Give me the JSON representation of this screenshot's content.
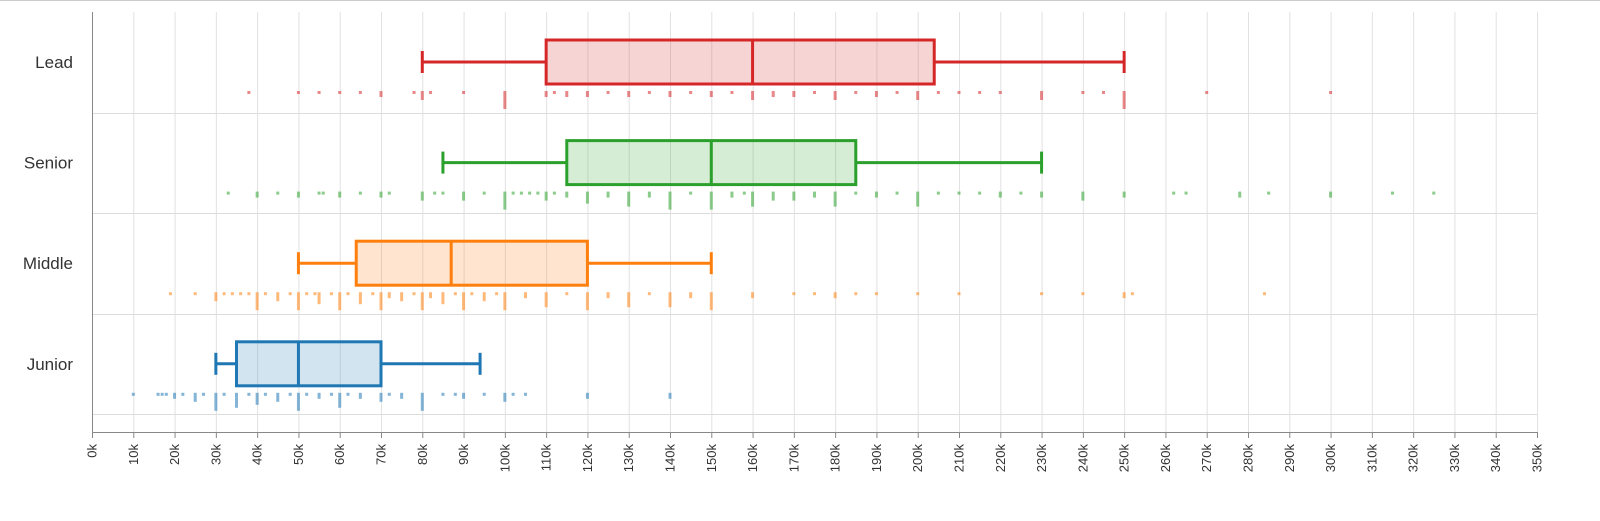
{
  "chart_data": {
    "type": "boxplot",
    "title": "",
    "xlabel": "",
    "ylabel": "",
    "xlim": [
      0,
      350
    ],
    "x_unit_suffix": "k",
    "x_ticks": [
      "0k",
      "10k",
      "20k",
      "30k",
      "40k",
      "50k",
      "60k",
      "70k",
      "80k",
      "90k",
      "100k",
      "110k",
      "120k",
      "130k",
      "140k",
      "150k",
      "160k",
      "170k",
      "180k",
      "190k",
      "200k",
      "210k",
      "220k",
      "230k",
      "240k",
      "250k",
      "260k",
      "270k",
      "280k",
      "290k",
      "300k",
      "310k",
      "320k",
      "330k",
      "340k",
      "350k"
    ],
    "grid": true,
    "series": [
      {
        "name": "Lead",
        "color": "#d62728",
        "min": 80,
        "q1": 110,
        "median": 160,
        "q3": 204,
        "max": 250,
        "rug": [
          [
            38,
            1
          ],
          [
            50,
            1
          ],
          [
            55,
            1
          ],
          [
            60,
            1
          ],
          [
            65,
            1
          ],
          [
            70,
            2
          ],
          [
            78,
            1
          ],
          [
            80,
            3
          ],
          [
            82,
            1
          ],
          [
            90,
            1
          ],
          [
            100,
            6
          ],
          [
            110,
            2
          ],
          [
            112,
            1
          ],
          [
            115,
            2
          ],
          [
            120,
            2
          ],
          [
            125,
            1
          ],
          [
            130,
            2
          ],
          [
            135,
            1
          ],
          [
            140,
            2
          ],
          [
            145,
            1
          ],
          [
            150,
            2
          ],
          [
            155,
            1
          ],
          [
            160,
            3
          ],
          [
            165,
            2
          ],
          [
            170,
            2
          ],
          [
            175,
            1
          ],
          [
            180,
            3
          ],
          [
            185,
            1
          ],
          [
            190,
            2
          ],
          [
            195,
            1
          ],
          [
            200,
            3
          ],
          [
            205,
            1
          ],
          [
            210,
            1
          ],
          [
            215,
            1
          ],
          [
            220,
            1
          ],
          [
            230,
            3
          ],
          [
            240,
            1
          ],
          [
            245,
            1
          ],
          [
            250,
            6
          ],
          [
            270,
            1
          ],
          [
            300,
            1
          ]
        ]
      },
      {
        "name": "Senior",
        "color": "#2ca02c",
        "min": 85,
        "q1": 115,
        "median": 150,
        "q3": 185,
        "max": 230,
        "rug": [
          [
            33,
            1
          ],
          [
            40,
            2
          ],
          [
            45,
            1
          ],
          [
            50,
            2
          ],
          [
            55,
            1
          ],
          [
            56,
            1
          ],
          [
            60,
            2
          ],
          [
            65,
            1
          ],
          [
            70,
            2
          ],
          [
            72,
            1
          ],
          [
            80,
            3
          ],
          [
            83,
            1
          ],
          [
            85,
            1
          ],
          [
            90,
            3
          ],
          [
            95,
            1
          ],
          [
            100,
            6
          ],
          [
            102,
            1
          ],
          [
            104,
            1
          ],
          [
            106,
            1
          ],
          [
            108,
            1
          ],
          [
            110,
            3
          ],
          [
            112,
            1
          ],
          [
            115,
            2
          ],
          [
            120,
            4
          ],
          [
            125,
            2
          ],
          [
            130,
            5
          ],
          [
            135,
            2
          ],
          [
            140,
            6
          ],
          [
            145,
            1
          ],
          [
            150,
            6
          ],
          [
            155,
            2
          ],
          [
            158,
            1
          ],
          [
            160,
            5
          ],
          [
            165,
            3
          ],
          [
            170,
            3
          ],
          [
            175,
            2
          ],
          [
            180,
            5
          ],
          [
            185,
            1
          ],
          [
            190,
            2
          ],
          [
            195,
            1
          ],
          [
            200,
            5
          ],
          [
            205,
            1
          ],
          [
            210,
            1
          ],
          [
            215,
            1
          ],
          [
            220,
            2
          ],
          [
            225,
            1
          ],
          [
            230,
            2
          ],
          [
            240,
            3
          ],
          [
            250,
            2
          ],
          [
            262,
            1
          ],
          [
            265,
            1
          ],
          [
            278,
            2
          ],
          [
            285,
            1
          ],
          [
            300,
            2
          ],
          [
            315,
            1
          ],
          [
            325,
            1
          ]
        ]
      },
      {
        "name": "Middle",
        "color": "#ff7f0e",
        "min": 50,
        "q1": 64,
        "median": 87,
        "q3": 120,
        "max": 150,
        "rug": [
          [
            19,
            1
          ],
          [
            25,
            1
          ],
          [
            30,
            3
          ],
          [
            32,
            1
          ],
          [
            34,
            1
          ],
          [
            36,
            1
          ],
          [
            38,
            1
          ],
          [
            40,
            6
          ],
          [
            42,
            1
          ],
          [
            45,
            3
          ],
          [
            48,
            1
          ],
          [
            50,
            6
          ],
          [
            52,
            1
          ],
          [
            54,
            1
          ],
          [
            55,
            4
          ],
          [
            58,
            1
          ],
          [
            60,
            6
          ],
          [
            62,
            1
          ],
          [
            65,
            4
          ],
          [
            68,
            1
          ],
          [
            70,
            6
          ],
          [
            72,
            2
          ],
          [
            75,
            3
          ],
          [
            78,
            1
          ],
          [
            80,
            6
          ],
          [
            82,
            2
          ],
          [
            85,
            4
          ],
          [
            88,
            1
          ],
          [
            90,
            6
          ],
          [
            92,
            1
          ],
          [
            95,
            3
          ],
          [
            98,
            1
          ],
          [
            100,
            6
          ],
          [
            105,
            2
          ],
          [
            110,
            5
          ],
          [
            115,
            1
          ],
          [
            120,
            6
          ],
          [
            125,
            2
          ],
          [
            130,
            5
          ],
          [
            135,
            1
          ],
          [
            140,
            5
          ],
          [
            145,
            2
          ],
          [
            150,
            6
          ],
          [
            160,
            2
          ],
          [
            170,
            1
          ],
          [
            175,
            1
          ],
          [
            180,
            2
          ],
          [
            185,
            1
          ],
          [
            190,
            1
          ],
          [
            200,
            1
          ],
          [
            210,
            1
          ],
          [
            230,
            1
          ],
          [
            240,
            1
          ],
          [
            250,
            2
          ],
          [
            252,
            1
          ],
          [
            284,
            1
          ]
        ]
      },
      {
        "name": "Junior",
        "color": "#1f77b4",
        "min": 30,
        "q1": 35,
        "median": 50,
        "q3": 70,
        "max": 94,
        "rug": [
          [
            10,
            1
          ],
          [
            16,
            1
          ],
          [
            17,
            1
          ],
          [
            18,
            1
          ],
          [
            20,
            2
          ],
          [
            22,
            1
          ],
          [
            25,
            3
          ],
          [
            27,
            1
          ],
          [
            30,
            6
          ],
          [
            32,
            1
          ],
          [
            35,
            5
          ],
          [
            38,
            1
          ],
          [
            40,
            4
          ],
          [
            42,
            1
          ],
          [
            45,
            3
          ],
          [
            48,
            1
          ],
          [
            50,
            6
          ],
          [
            52,
            1
          ],
          [
            55,
            2
          ],
          [
            58,
            1
          ],
          [
            60,
            5
          ],
          [
            62,
            1
          ],
          [
            65,
            2
          ],
          [
            70,
            3
          ],
          [
            72,
            1
          ],
          [
            75,
            2
          ],
          [
            80,
            6
          ],
          [
            85,
            1
          ],
          [
            88,
            1
          ],
          [
            90,
            2
          ],
          [
            95,
            1
          ],
          [
            100,
            3
          ],
          [
            102,
            1
          ],
          [
            105,
            1
          ],
          [
            120,
            2
          ],
          [
            140,
            2
          ]
        ]
      }
    ]
  }
}
